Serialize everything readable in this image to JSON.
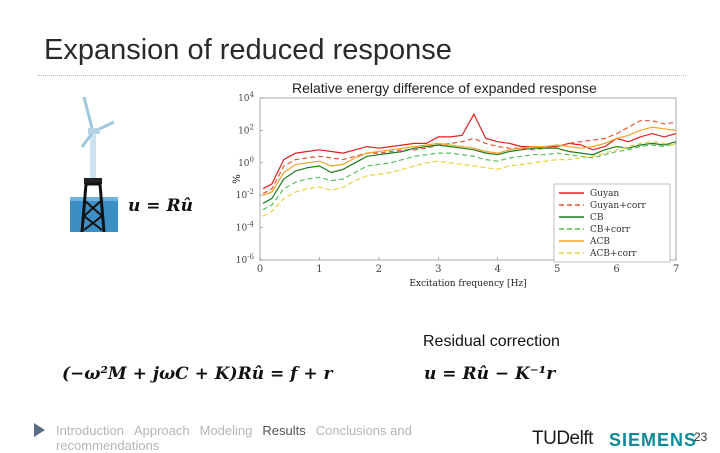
{
  "slide": {
    "title": "Expansion of reduced response",
    "page_number": "23"
  },
  "equations": {
    "expansion": "u = Rû",
    "residual": "(−ω²M + jωC + K)Rû = f + r",
    "correction": "u = Rû − K⁻¹r"
  },
  "residual_heading": "Residual correction",
  "footer": {
    "nav": [
      {
        "label": "Introduction",
        "active": false
      },
      {
        "label": "Approach",
        "active": false
      },
      {
        "label": "Modeling",
        "active": false
      },
      {
        "label": "Results",
        "active": true
      },
      {
        "label": "Conclusions and recommendations",
        "active": false
      }
    ],
    "logo_tudelft": "TUDelft",
    "logo_siemens": "SIEMENS"
  },
  "chart_data": {
    "type": "line",
    "title": "Relative energy difference of expanded response",
    "xlabel": "Excitation frequency [Hz]",
    "ylabel": "%",
    "xlim": [
      0,
      7
    ],
    "ylim_exponent": [
      -6,
      4
    ],
    "yscale": "log",
    "x_ticks": [
      "0",
      "1",
      "2",
      "3",
      "4",
      "5",
      "6",
      "7"
    ],
    "y_ticks": [
      "10^4",
      "10^2",
      "10^0",
      "10^-2",
      "10^-4",
      "10^-6"
    ],
    "legend_position": "lower-right",
    "x": [
      0.05,
      0.2,
      0.4,
      0.6,
      0.8,
      1.0,
      1.2,
      1.4,
      1.6,
      1.8,
      2.0,
      2.2,
      2.4,
      2.6,
      2.8,
      3.0,
      3.2,
      3.4,
      3.6,
      3.8,
      4.0,
      4.2,
      4.4,
      4.6,
      4.8,
      5.0,
      5.2,
      5.4,
      5.6,
      5.8,
      6.0,
      6.2,
      6.4,
      6.6,
      6.8,
      7.0
    ],
    "series": [
      {
        "name": "Guyan",
        "color": "#e02020",
        "dash": "",
        "values": [
          -1.6,
          -1.3,
          0.2,
          0.6,
          0.7,
          0.8,
          0.7,
          0.6,
          0.8,
          1.0,
          0.9,
          1.0,
          1.1,
          1.2,
          1.2,
          1.6,
          1.6,
          1.7,
          3.0,
          1.5,
          1.3,
          1.2,
          1.0,
          1.0,
          1.0,
          1.0,
          1.2,
          1.1,
          0.8,
          1.0,
          1.5,
          1.3,
          1.6,
          1.8,
          1.6,
          1.8
        ]
      },
      {
        "name": "Guyan+corr",
        "color": "#e8553a",
        "dash": "5,3",
        "values": [
          -1.9,
          -1.6,
          -0.2,
          0.2,
          0.3,
          0.4,
          0.3,
          0.2,
          0.4,
          0.6,
          0.6,
          0.7,
          0.8,
          0.8,
          0.9,
          1.1,
          1.2,
          1.3,
          1.5,
          1.2,
          1.0,
          0.9,
          0.9,
          0.8,
          0.9,
          1.0,
          1.2,
          1.3,
          1.4,
          1.5,
          1.8,
          2.2,
          2.6,
          2.6,
          2.4,
          2.5
        ]
      },
      {
        "name": "CB",
        "color": "#1f7a1f",
        "dash": "",
        "values": [
          -2.5,
          -2.2,
          -1.0,
          -0.5,
          -0.3,
          -0.2,
          -0.6,
          -0.4,
          0.0,
          0.4,
          0.5,
          0.6,
          0.7,
          0.9,
          1.0,
          1.1,
          1.0,
          0.9,
          0.8,
          0.6,
          0.5,
          0.7,
          0.8,
          0.9,
          0.9,
          0.9,
          0.7,
          0.6,
          0.5,
          0.8,
          1.0,
          0.9,
          1.1,
          1.2,
          1.1,
          1.3
        ]
      },
      {
        "name": "CB+corr",
        "color": "#5cbf5c",
        "dash": "5,3",
        "values": [
          -2.9,
          -2.6,
          -1.6,
          -1.2,
          -1.0,
          -0.9,
          -1.1,
          -1.0,
          -0.6,
          -0.2,
          -0.1,
          0.0,
          0.2,
          0.4,
          0.5,
          0.6,
          0.6,
          0.5,
          0.4,
          0.2,
          0.1,
          0.3,
          0.4,
          0.5,
          0.5,
          0.6,
          0.5,
          0.4,
          0.3,
          0.5,
          0.7,
          0.8,
          1.0,
          1.1,
          1.0,
          1.2
        ]
      },
      {
        "name": "ACB",
        "color": "#f2a32a",
        "dash": "",
        "values": [
          -2.0,
          -1.8,
          -0.6,
          -0.1,
          0.0,
          0.1,
          -0.2,
          -0.1,
          0.3,
          0.6,
          0.7,
          0.8,
          0.9,
          1.0,
          1.1,
          1.2,
          1.1,
          1.0,
          0.9,
          0.7,
          0.6,
          0.8,
          0.9,
          1.0,
          1.0,
          1.1,
          1.0,
          0.9,
          1.0,
          1.2,
          1.5,
          1.7,
          2.0,
          2.2,
          2.1,
          2.0
        ]
      },
      {
        "name": "ACB+corr",
        "color": "#e8d23a",
        "dash": "5,3",
        "values": [
          -3.3,
          -3.0,
          -2.2,
          -1.8,
          -1.6,
          -1.5,
          -1.7,
          -1.5,
          -1.1,
          -0.8,
          -0.7,
          -0.6,
          -0.4,
          -0.2,
          0.0,
          0.1,
          0.0,
          -0.1,
          -0.2,
          -0.3,
          -0.4,
          -0.2,
          -0.1,
          0.0,
          0.1,
          0.2,
          0.2,
          0.3,
          0.4,
          0.6,
          0.8,
          1.0,
          1.2,
          1.3,
          1.2,
          1.1
        ]
      }
    ]
  }
}
